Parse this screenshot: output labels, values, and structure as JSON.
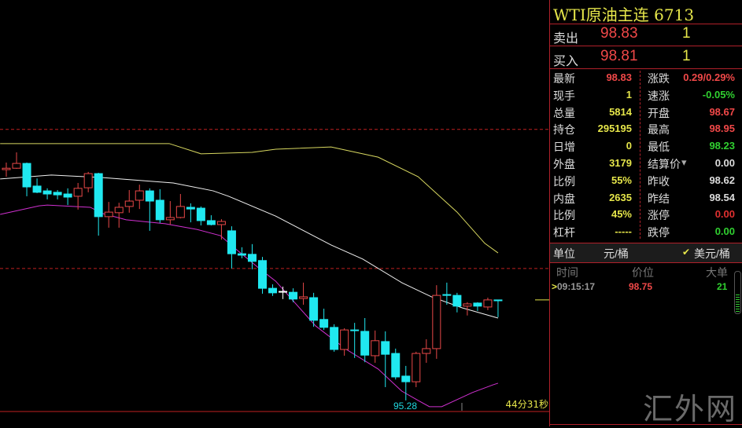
{
  "chart_data": {
    "type": "candlestick",
    "low_label": "95.28",
    "timer": "44分31秒",
    "colors": {
      "up": "#e84848",
      "down": "#20e8f0",
      "upper_band": "#d8d860",
      "mid_band": "#f0f0f0",
      "lower_band": "#d030d0",
      "ref_line": "#c02020"
    },
    "reference_lines": [
      104.85,
      99.94
    ],
    "candles": [
      [
        103.43,
        103.48,
        103.68,
        103.18
      ],
      [
        103.48,
        103.65,
        104.04,
        103.46
      ],
      [
        103.65,
        102.82,
        103.68,
        102.49
      ],
      [
        102.85,
        102.63,
        103.12,
        102.6
      ],
      [
        102.68,
        102.57,
        102.77,
        102.38
      ],
      [
        102.63,
        102.54,
        102.71,
        102.38
      ],
      [
        102.57,
        102.46,
        102.77,
        102.18
      ],
      [
        102.49,
        102.77,
        102.96,
        102.02
      ],
      [
        102.79,
        103.29,
        103.35,
        102.63
      ],
      [
        103.29,
        101.77,
        103.32,
        101.1
      ],
      [
        101.77,
        101.93,
        102.29,
        101.38
      ],
      [
        101.91,
        102.1,
        102.26,
        101.38
      ],
      [
        102.13,
        102.32,
        102.71,
        101.91
      ],
      [
        102.35,
        102.68,
        102.9,
        102.04
      ],
      [
        102.68,
        102.32,
        102.77,
        101.27
      ],
      [
        102.35,
        101.66,
        102.74,
        101.55
      ],
      [
        101.66,
        101.74,
        102.32,
        101.49
      ],
      [
        101.74,
        102.13,
        102.57,
        101.71
      ],
      [
        102.1,
        102.04,
        102.24,
        101.57
      ],
      [
        102.07,
        101.63,
        102.13,
        101.46
      ],
      [
        101.63,
        101.49,
        101.82,
        101.46
      ],
      [
        101.49,
        101.6,
        101.68,
        100.96
      ],
      [
        101.27,
        100.46,
        101.43,
        99.94
      ],
      [
        100.46,
        100.41,
        100.69,
        100.3
      ],
      [
        100.44,
        100.19,
        100.8,
        99.91
      ],
      [
        100.22,
        99.24,
        100.35,
        99.05
      ],
      [
        99.24,
        99.08,
        99.38,
        98.97
      ],
      [
        99.13,
        99.13,
        99.3,
        98.86
      ],
      [
        99.1,
        98.86,
        99.24,
        98.75
      ],
      [
        98.88,
        98.94,
        99.44,
        98.66
      ],
      [
        98.91,
        98.11,
        99.08,
        97.88
      ],
      [
        98.14,
        97.86,
        98.52,
        97.77
      ],
      [
        97.86,
        97.08,
        97.97,
        97.0
      ],
      [
        97.08,
        97.77,
        97.83,
        96.86
      ],
      [
        97.77,
        97.75,
        98.02,
        96.78
      ],
      [
        97.72,
        96.88,
        98.19,
        96.63
      ],
      [
        96.86,
        97.39,
        97.75,
        96.61
      ],
      [
        97.36,
        96.91,
        97.72,
        95.75
      ],
      [
        96.94,
        96.11,
        97.11,
        96.02
      ],
      [
        96.14,
        95.94,
        96.5,
        95.28
      ],
      [
        95.94,
        96.94,
        97.0,
        95.75
      ],
      [
        96.94,
        97.11,
        97.44,
        96.61
      ],
      [
        97.11,
        98.99,
        99.35,
        96.75
      ],
      [
        99.02,
        98.99,
        99.44,
        98.66
      ],
      [
        98.99,
        98.61,
        99.08,
        98.39
      ],
      [
        98.61,
        98.69,
        98.75,
        98.28
      ],
      [
        98.72,
        98.61,
        98.75,
        98.44
      ],
      [
        98.58,
        98.83,
        98.91,
        98.47
      ],
      [
        98.83,
        98.8,
        98.83,
        98.22
      ]
    ],
    "upper_band": [
      [
        -0.6,
        104.35
      ],
      [
        15.9,
        104.35
      ],
      [
        19,
        103.99
      ],
      [
        24,
        104.04
      ],
      [
        26.3,
        104.15
      ],
      [
        31.7,
        104.23
      ],
      [
        36.3,
        103.87
      ],
      [
        40.2,
        103.18
      ],
      [
        44,
        101.93
      ],
      [
        46.7,
        100.83
      ],
      [
        48,
        100.49
      ]
    ],
    "mid_band": [
      [
        -0.6,
        103.1
      ],
      [
        4.4,
        103.24
      ],
      [
        9.4,
        103.15
      ],
      [
        16.3,
        102.96
      ],
      [
        20.2,
        102.68
      ],
      [
        21.7,
        102.49
      ],
      [
        26.3,
        101.79
      ],
      [
        31.7,
        100.77
      ],
      [
        34.8,
        100.27
      ],
      [
        38.6,
        99.44
      ],
      [
        41.5,
        98.94
      ],
      [
        44.5,
        98.55
      ],
      [
        48,
        98.19
      ]
    ],
    "lower_band": [
      [
        -0.6,
        101.85
      ],
      [
        3.2,
        102.15
      ],
      [
        4,
        102.18
      ],
      [
        8.2,
        102.1
      ],
      [
        9.4,
        101.88
      ],
      [
        11.7,
        101.66
      ],
      [
        15.5,
        101.52
      ],
      [
        18.6,
        101.32
      ],
      [
        20.9,
        101.1
      ],
      [
        22.5,
        100.6
      ],
      [
        24.8,
        99.91
      ],
      [
        26.3,
        99.49
      ],
      [
        27.8,
        98.88
      ],
      [
        30.2,
        97.91
      ],
      [
        33.2,
        97.08
      ],
      [
        36.3,
        96.39
      ],
      [
        38.6,
        95.61
      ],
      [
        40.2,
        95.28
      ],
      [
        41.3,
        95.06
      ],
      [
        42.5,
        95.06
      ],
      [
        45.5,
        95.56
      ],
      [
        47.5,
        95.83
      ],
      [
        48,
        95.89
      ]
    ],
    "last_price": 98.83
  },
  "panel": {
    "title": "WTI原油主连  6713",
    "ask": {
      "label": "卖出",
      "price": "98.83",
      "volume": "1"
    },
    "bid": {
      "label": "买入",
      "price": "98.81",
      "volume": "1"
    },
    "stats": [
      {
        "l1": "最新",
        "v1": "98.83",
        "c1": "#f04848",
        "l2": "涨跌",
        "v2": "0.29/0.29%",
        "c2": "#f04848"
      },
      {
        "l1": "现手",
        "v1": "1",
        "c1": "#e6e64a",
        "l2": "速涨",
        "v2": "-0.05%",
        "c2": "#30d030"
      },
      {
        "l1": "总量",
        "v1": "5814",
        "c1": "#e6e64a",
        "l2": "开盘",
        "v2": "98.67",
        "c2": "#f04848"
      },
      {
        "l1": "持仓",
        "v1": "295195",
        "c1": "#e6e64a",
        "l2": "最高",
        "v2": "98.95",
        "c2": "#f04848"
      },
      {
        "l1": "日增",
        "v1": "0",
        "c1": "#e6e64a",
        "l2": "最低",
        "v2": "98.23",
        "c2": "#30d030"
      },
      {
        "l1": "外盘",
        "v1": "3179",
        "c1": "#e6e64a",
        "l2": "结算价",
        "v2": "0.00",
        "c2": "#ddd"
      },
      {
        "l1": "比例",
        "v1": "55%",
        "c1": "#e6e64a",
        "l2": "昨收",
        "v2": "98.62",
        "c2": "#ddd"
      },
      {
        "l1": "内盘",
        "v1": "2635",
        "c1": "#e6e64a",
        "l2": "昨结",
        "v2": "98.54",
        "c2": "#ddd"
      },
      {
        "l1": "比例",
        "v1": "45%",
        "c1": "#e6e64a",
        "l2": "涨停",
        "v2": "0.00",
        "c2": "#e03030"
      },
      {
        "l1": "杠杆",
        "v1": "-----",
        "c1": "#e6e64a",
        "l2": "跌停",
        "v2": "0.00",
        "c2": "#30d030"
      }
    ],
    "unit": {
      "label": "单位",
      "option1": "元/桶",
      "option2": "美元/桶",
      "check": "✔"
    },
    "ticks_header": {
      "time": "时间",
      "price": "价位",
      "big": "大单"
    },
    "ticks": [
      {
        "marker": ">",
        "time": "09:15:17",
        "price": "98.75",
        "big": "21"
      }
    ],
    "watermark": "汇外网"
  }
}
